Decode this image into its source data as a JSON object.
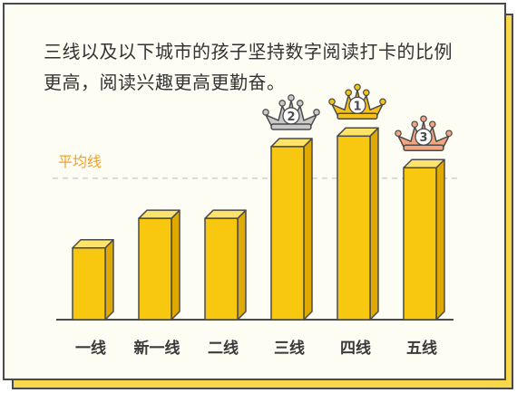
{
  "caption": "三线以及以下城市的孩子坚持数字阅读打卡的比例更高，阅读兴趣更高更勤奋。",
  "colors": {
    "bar_front": "#f7c80f",
    "bar_side": "#e0a900",
    "bar_top": "#fde36a",
    "outline": "#4a4a4a",
    "average_line": "#f0a030",
    "label": "#3a3a3a",
    "crown_gold": "#f5c21b",
    "crown_silver": "#c9c9c9",
    "crown_bronze": "#f2a57f",
    "card_bg": "#fdfdf3",
    "card_shadow": "#f6d84a"
  },
  "chart_data": {
    "type": "bar",
    "categories": [
      "一线",
      "新一线",
      "二线",
      "三线",
      "四线",
      "五线"
    ],
    "values": [
      34,
      48,
      48,
      82,
      87,
      72
    ],
    "ylim": [
      0,
      100
    ],
    "average": {
      "label": "平均线",
      "value": 67
    },
    "ranks": [
      {
        "category": "三线",
        "rank": "2",
        "crown": "silver"
      },
      {
        "category": "四线",
        "rank": "1",
        "crown": "gold"
      },
      {
        "category": "五线",
        "rank": "3",
        "crown": "bronze"
      }
    ]
  }
}
